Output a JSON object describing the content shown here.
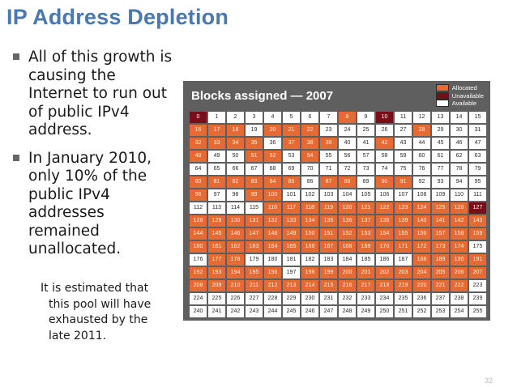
{
  "slide": {
    "title": "IP Address Depletion",
    "bullets": [
      "All of this growth is causing the Internet to run out of public IPv4 address.",
      "In January 2010, only 10% of the public IPv4 addresses remained unallocated."
    ],
    "subtext": [
      "It is estimated that",
      "this pool will have",
      "exhausted by the",
      "late 2011."
    ],
    "page_number": "32"
  },
  "figure": {
    "title": "Blocks assigned — 2007",
    "legend": [
      {
        "label": "Allocated",
        "color": "#e66a33"
      },
      {
        "label": "Unavailable",
        "color": "#7a0e18"
      },
      {
        "label": "Available",
        "color": "#ffffff"
      }
    ],
    "blocks": {
      "unavailable": [
        0,
        10,
        127
      ],
      "available": [
        1,
        2,
        3,
        4,
        5,
        6,
        7,
        9,
        11,
        12,
        13,
        14,
        15,
        19,
        23,
        24,
        25,
        26,
        27,
        29,
        30,
        31,
        36,
        40,
        41,
        43,
        44,
        45,
        46,
        47,
        49,
        50,
        53,
        55,
        56,
        57,
        58,
        59,
        60,
        61,
        62,
        63,
        64,
        65,
        66,
        67,
        68,
        69,
        70,
        71,
        72,
        73,
        74,
        75,
        76,
        77,
        78,
        79,
        86,
        89,
        92,
        93,
        94,
        95,
        97,
        98,
        101,
        102,
        103,
        104,
        105,
        106,
        107,
        108,
        109,
        110,
        111,
        112,
        113,
        114,
        115,
        175,
        176,
        179,
        180,
        181,
        182,
        183,
        184,
        185,
        186,
        187,
        197,
        223,
        224,
        225,
        226,
        227,
        228,
        229,
        230,
        231,
        232,
        233,
        234,
        235,
        236,
        237,
        238,
        239,
        240,
        241,
        242,
        243,
        244,
        245,
        246,
        247,
        248,
        249,
        250,
        251,
        252,
        253,
        254,
        255
      ]
    }
  }
}
